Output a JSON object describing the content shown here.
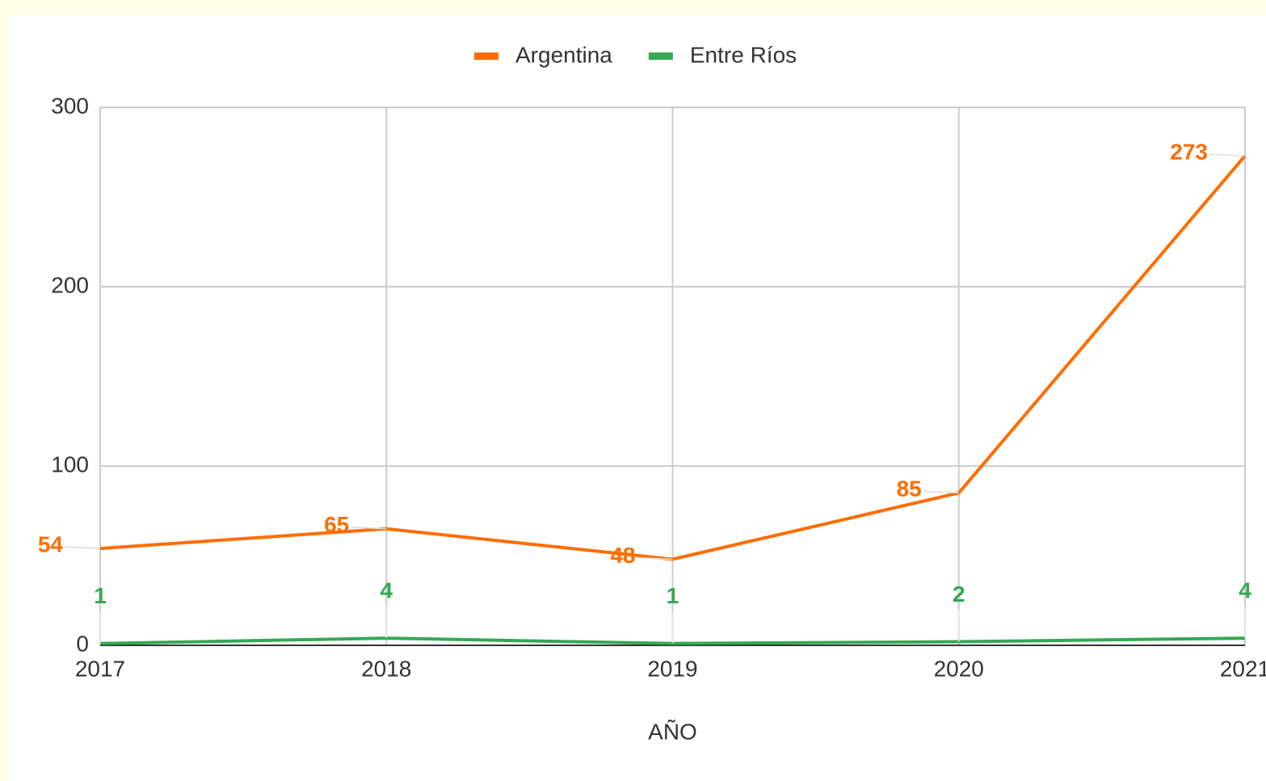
{
  "chart_data": {
    "type": "line",
    "x": [
      2017,
      2018,
      2019,
      2020,
      2021
    ],
    "series": [
      {
        "name": "Argentina",
        "color": "#ff6d01",
        "values": [
          54,
          65,
          48,
          85,
          273
        ]
      },
      {
        "name": "Entre Ríos",
        "color": "#34a853",
        "values": [
          1,
          4,
          1,
          2,
          4
        ]
      }
    ],
    "xlim": [
      2017,
      2021
    ],
    "xticks": [
      2017,
      2018,
      2019,
      2020,
      2021
    ],
    "ylim": [
      0,
      300
    ],
    "yticks": [
      0,
      100,
      200,
      300
    ],
    "x_label": "AÑO",
    "grid": true,
    "legend": "top"
  }
}
